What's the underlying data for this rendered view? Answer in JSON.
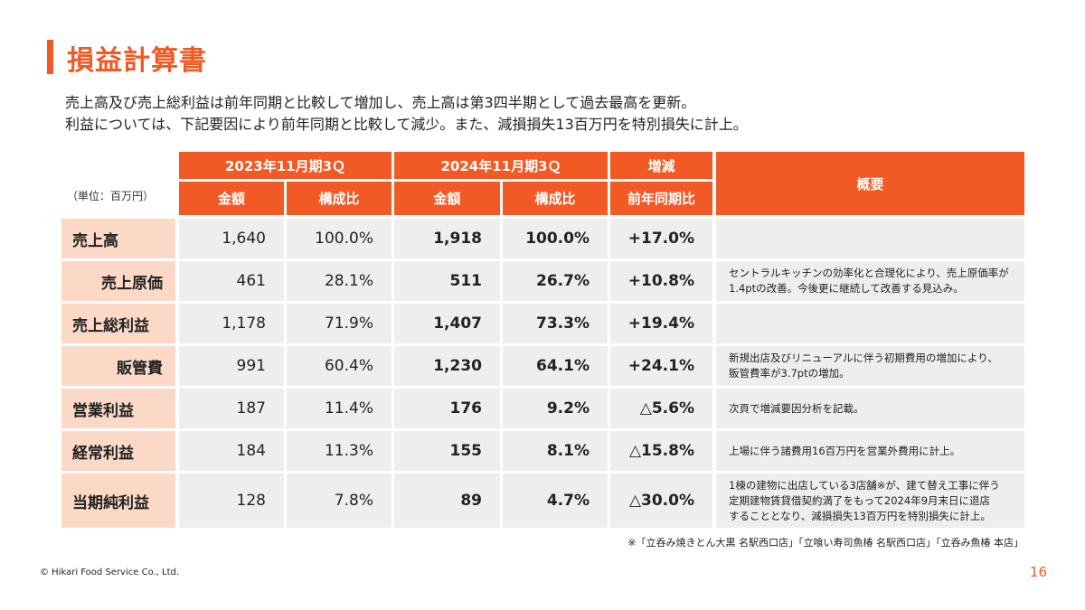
{
  "title": "損益計算書",
  "summary": [
    "売上高及び売上総利益は前年同期と比較して増加し、売上高は第3四半期として過去最高を更新。",
    "利益については、下記要因により前年同期と比較して減少。また、減損損失13百万円を特別損失に計上。"
  ],
  "unit": "（単位：百万円）",
  "headers": {
    "period1": "2023年11月期3Ｑ",
    "period2": "2024年11月期3Ｑ",
    "change": "増減",
    "amount1": "金額",
    "ratio1": "構成比",
    "amount2": "金額",
    "ratio2": "構成比",
    "yoy": "前年同期比",
    "overview": "概要"
  },
  "rows": [
    {
      "label": "売上高",
      "a1": "1,640",
      "r1": "100.0%",
      "a2": "1,918",
      "r2": "100.0%",
      "yoy": "+17.0%",
      "note": ""
    },
    {
      "label": "売上原価",
      "a1": "461",
      "r1": "28.1%",
      "a2": "511",
      "r2": "26.7%",
      "yoy": "+10.8%",
      "note": "セントラルキッチンの効率化と合理化により、売上原価率が\n1.4ptの改善。今後更に継続して改善する見込み。"
    },
    {
      "label": "売上総利益",
      "a1": "1,178",
      "r1": "71.9%",
      "a2": "1,407",
      "r2": "73.3%",
      "yoy": "+19.4%",
      "note": ""
    },
    {
      "label": "販管費",
      "a1": "991",
      "r1": "60.4%",
      "a2": "1,230",
      "r2": "64.1%",
      "yoy": "+24.1%",
      "note": "新規出店及びリニューアルに伴う初期費用の増加により、\n販管費率が3.7ptの増加。"
    },
    {
      "label": "営業利益",
      "a1": "187",
      "r1": "11.4%",
      "a2": "176",
      "r2": "9.2%",
      "yoy": "△5.6%",
      "note": "次頁で増減要因分析を記載。"
    },
    {
      "label": "経常利益",
      "a1": "184",
      "r1": "11.3%",
      "a2": "155",
      "r2": "8.1%",
      "yoy": "△15.8%",
      "note": "上場に伴う諸費用16百万円を営業外費用に計上。"
    },
    {
      "label": "当期純利益",
      "a1": "128",
      "r1": "7.8%",
      "a2": "89",
      "r2": "4.7%",
      "yoy": "△30.0%",
      "note": "1棟の建物に出店している3店舗※が、建て替え工事に伴う\n定期建物賃貸借契約満了をもって2024年9月末日に退店\nすることとなり、減損損失13百万円を特別損失に計上。"
    }
  ],
  "footnote": "※「立呑み焼きとん大黒 名駅西口店」「立喰い寿司魚椿 名駅西口店」「立呑み魚椿 本店」",
  "copyright": "© Hikari Food Service Co., Ltd.",
  "page_number": "16",
  "colors": {
    "accent": "#f15a24",
    "label_bg": "#fbd9c6",
    "cell_bg": "#eeeeee"
  }
}
